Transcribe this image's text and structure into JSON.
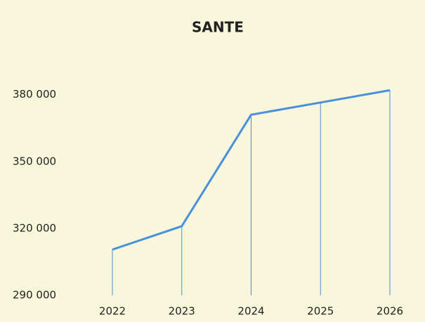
{
  "chart_data": {
    "type": "line",
    "title": "SANTE",
    "categories": [
      "2022",
      "2023",
      "2024",
      "2025",
      "2026"
    ],
    "values": [
      310500,
      321000,
      371000,
      376500,
      382000
    ],
    "color": "#4a8fdc",
    "ylim": [
      290000,
      390000
    ],
    "yticks": [
      {
        "value": 290000,
        "label": "290 000"
      },
      {
        "value": 320000,
        "label": "320 000"
      },
      {
        "value": 350000,
        "label": "350 000"
      },
      {
        "value": 380000,
        "label": "380 000"
      }
    ],
    "grid": false,
    "drop_lines": true
  }
}
